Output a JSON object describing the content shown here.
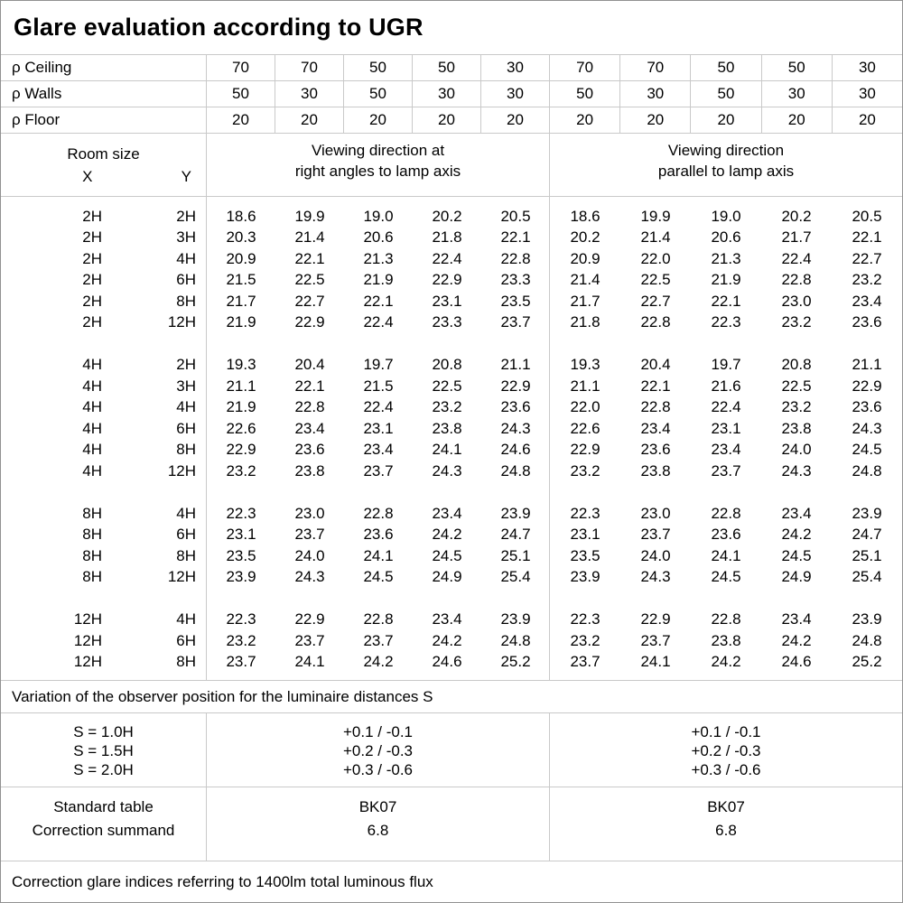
{
  "title": "Glare evaluation according to UGR",
  "colors": {
    "grid_line": "#c9c9c9",
    "outer_border": "#919191",
    "text": "#000000",
    "background": "#ffffff"
  },
  "reflectance_rows": [
    {
      "label": "ρ Ceiling",
      "values": [
        "70",
        "70",
        "50",
        "50",
        "30",
        "70",
        "70",
        "50",
        "50",
        "30"
      ]
    },
    {
      "label": "ρ Walls",
      "values": [
        "50",
        "30",
        "50",
        "30",
        "30",
        "50",
        "30",
        "50",
        "30",
        "30"
      ]
    },
    {
      "label": "ρ Floor",
      "values": [
        "20",
        "20",
        "20",
        "20",
        "20",
        "20",
        "20",
        "20",
        "20",
        "20"
      ]
    }
  ],
  "room_header": {
    "room_size": "Room size",
    "x": "X",
    "y": "Y",
    "right_angles_line1": "Viewing direction at",
    "right_angles_line2": "right angles to lamp axis",
    "parallel_line1": "Viewing direction",
    "parallel_line2": "parallel to lamp axis"
  },
  "ugr_blocks": [
    {
      "rows": [
        {
          "x": "2H",
          "y": "2H",
          "right_angles": [
            "18.6",
            "19.9",
            "19.0",
            "20.2",
            "20.5"
          ],
          "parallel": [
            "18.6",
            "19.9",
            "19.0",
            "20.2",
            "20.5"
          ]
        },
        {
          "x": "2H",
          "y": "3H",
          "right_angles": [
            "20.3",
            "21.4",
            "20.6",
            "21.8",
            "22.1"
          ],
          "parallel": [
            "20.2",
            "21.4",
            "20.6",
            "21.7",
            "22.1"
          ]
        },
        {
          "x": "2H",
          "y": "4H",
          "right_angles": [
            "20.9",
            "22.1",
            "21.3",
            "22.4",
            "22.8"
          ],
          "parallel": [
            "20.9",
            "22.0",
            "21.3",
            "22.4",
            "22.7"
          ]
        },
        {
          "x": "2H",
          "y": "6H",
          "right_angles": [
            "21.5",
            "22.5",
            "21.9",
            "22.9",
            "23.3"
          ],
          "parallel": [
            "21.4",
            "22.5",
            "21.9",
            "22.8",
            "23.2"
          ]
        },
        {
          "x": "2H",
          "y": "8H",
          "right_angles": [
            "21.7",
            "22.7",
            "22.1",
            "23.1",
            "23.5"
          ],
          "parallel": [
            "21.7",
            "22.7",
            "22.1",
            "23.0",
            "23.4"
          ]
        },
        {
          "x": "2H",
          "y": "12H",
          "right_angles": [
            "21.9",
            "22.9",
            "22.4",
            "23.3",
            "23.7"
          ],
          "parallel": [
            "21.8",
            "22.8",
            "22.3",
            "23.2",
            "23.6"
          ]
        }
      ]
    },
    {
      "rows": [
        {
          "x": "4H",
          "y": "2H",
          "right_angles": [
            "19.3",
            "20.4",
            "19.7",
            "20.8",
            "21.1"
          ],
          "parallel": [
            "19.3",
            "20.4",
            "19.7",
            "20.8",
            "21.1"
          ]
        },
        {
          "x": "4H",
          "y": "3H",
          "right_angles": [
            "21.1",
            "22.1",
            "21.5",
            "22.5",
            "22.9"
          ],
          "parallel": [
            "21.1",
            "22.1",
            "21.6",
            "22.5",
            "22.9"
          ]
        },
        {
          "x": "4H",
          "y": "4H",
          "right_angles": [
            "21.9",
            "22.8",
            "22.4",
            "23.2",
            "23.6"
          ],
          "parallel": [
            "22.0",
            "22.8",
            "22.4",
            "23.2",
            "23.6"
          ]
        },
        {
          "x": "4H",
          "y": "6H",
          "right_angles": [
            "22.6",
            "23.4",
            "23.1",
            "23.8",
            "24.3"
          ],
          "parallel": [
            "22.6",
            "23.4",
            "23.1",
            "23.8",
            "24.3"
          ]
        },
        {
          "x": "4H",
          "y": "8H",
          "right_angles": [
            "22.9",
            "23.6",
            "23.4",
            "24.1",
            "24.6"
          ],
          "parallel": [
            "22.9",
            "23.6",
            "23.4",
            "24.0",
            "24.5"
          ]
        },
        {
          "x": "4H",
          "y": "12H",
          "right_angles": [
            "23.2",
            "23.8",
            "23.7",
            "24.3",
            "24.8"
          ],
          "parallel": [
            "23.2",
            "23.8",
            "23.7",
            "24.3",
            "24.8"
          ]
        }
      ]
    },
    {
      "rows": [
        {
          "x": "8H",
          "y": "4H",
          "right_angles": [
            "22.3",
            "23.0",
            "22.8",
            "23.4",
            "23.9"
          ],
          "parallel": [
            "22.3",
            "23.0",
            "22.8",
            "23.4",
            "23.9"
          ]
        },
        {
          "x": "8H",
          "y": "6H",
          "right_angles": [
            "23.1",
            "23.7",
            "23.6",
            "24.2",
            "24.7"
          ],
          "parallel": [
            "23.1",
            "23.7",
            "23.6",
            "24.2",
            "24.7"
          ]
        },
        {
          "x": "8H",
          "y": "8H",
          "right_angles": [
            "23.5",
            "24.0",
            "24.1",
            "24.5",
            "25.1"
          ],
          "parallel": [
            "23.5",
            "24.0",
            "24.1",
            "24.5",
            "25.1"
          ]
        },
        {
          "x": "8H",
          "y": "12H",
          "right_angles": [
            "23.9",
            "24.3",
            "24.5",
            "24.9",
            "25.4"
          ],
          "parallel": [
            "23.9",
            "24.3",
            "24.5",
            "24.9",
            "25.4"
          ]
        }
      ]
    },
    {
      "rows": [
        {
          "x": "12H",
          "y": "4H",
          "right_angles": [
            "22.3",
            "22.9",
            "22.8",
            "23.4",
            "23.9"
          ],
          "parallel": [
            "22.3",
            "22.9",
            "22.8",
            "23.4",
            "23.9"
          ]
        },
        {
          "x": "12H",
          "y": "6H",
          "right_angles": [
            "23.2",
            "23.7",
            "23.7",
            "24.2",
            "24.8"
          ],
          "parallel": [
            "23.2",
            "23.7",
            "23.8",
            "24.2",
            "24.8"
          ]
        },
        {
          "x": "12H",
          "y": "8H",
          "right_angles": [
            "23.7",
            "24.1",
            "24.2",
            "24.6",
            "25.2"
          ],
          "parallel": [
            "23.7",
            "24.1",
            "24.2",
            "24.6",
            "25.2"
          ]
        }
      ]
    }
  ],
  "variation_note": "Variation of the observer position for the luminaire distances S",
  "spacing_rows": [
    {
      "label": "S = 1.0H",
      "right_angles": "+0.1 / -0.1",
      "parallel": "+0.1 / -0.1"
    },
    {
      "label": "S = 1.5H",
      "right_angles": "+0.2 / -0.3",
      "parallel": "+0.2 / -0.3"
    },
    {
      "label": "S = 2.0H",
      "right_angles": "+0.3 / -0.6",
      "parallel": "+0.3 / -0.6"
    }
  ],
  "standard_rows": [
    {
      "label": "Standard table",
      "right_angles": "BK07",
      "parallel": "BK07"
    },
    {
      "label": "Correction summand",
      "right_angles": "6.8",
      "parallel": "6.8"
    }
  ],
  "footer_note": "Correction glare indices referring to 1400lm total luminous flux"
}
